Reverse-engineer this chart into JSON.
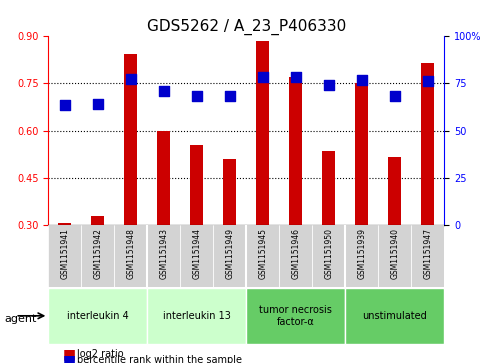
{
  "title": "GDS5262 / A_23_P406330",
  "samples": [
    "GSM1151941",
    "GSM1151942",
    "GSM1151948",
    "GSM1151943",
    "GSM1151944",
    "GSM1151949",
    "GSM1151945",
    "GSM1151946",
    "GSM1151950",
    "GSM1151939",
    "GSM1151940",
    "GSM1151947"
  ],
  "log2_ratio": [
    0.305,
    0.33,
    0.845,
    0.6,
    0.555,
    0.51,
    0.885,
    0.77,
    0.535,
    0.75,
    0.515,
    0.815
  ],
  "percentile_rank": [
    0.635,
    0.64,
    0.775,
    0.71,
    0.685,
    0.685,
    0.785,
    0.785,
    0.74,
    0.77,
    0.685,
    0.765
  ],
  "agents": [
    {
      "label": "interleukin 4",
      "start": 0,
      "end": 3,
      "color": "#ccffcc"
    },
    {
      "label": "interleukin 13",
      "start": 3,
      "end": 6,
      "color": "#ccffcc"
    },
    {
      "label": "tumor necrosis\nfactor-α",
      "start": 6,
      "end": 9,
      "color": "#66cc66"
    },
    {
      "label": "unstimulated",
      "start": 9,
      "end": 12,
      "color": "#66cc66"
    }
  ],
  "ylim_left": [
    0.3,
    0.9
  ],
  "ylim_right": [
    0,
    100
  ],
  "yticks_left": [
    0.3,
    0.45,
    0.6,
    0.75,
    0.9
  ],
  "yticks_right": [
    0,
    25,
    50,
    75,
    100
  ],
  "bar_color": "#cc0000",
  "dot_color": "#0000cc",
  "bar_width": 0.4,
  "dot_size": 50,
  "background_plot": "#ffffff",
  "sample_box_color": "#d3d3d3",
  "grid_color": "#000000",
  "title_fontsize": 11,
  "tick_fontsize": 7,
  "label_fontsize": 8
}
